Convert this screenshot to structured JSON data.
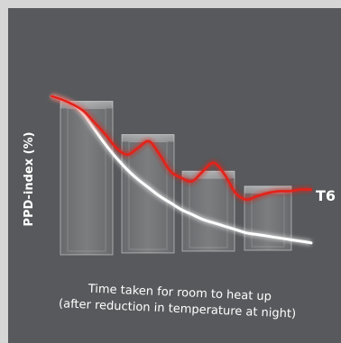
{
  "chart_data": {
    "type": "bar",
    "ylabel": "PPD-index (%)",
    "xlabel_lines": [
      "Time taken for room to heat up",
      "(after reduction in temperature at night)"
    ],
    "bars": [
      {
        "value": 90
      },
      {
        "value": 70
      },
      {
        "value": 48
      },
      {
        "value": 39
      }
    ],
    "series": [
      {
        "color": "#e2231a",
        "values": [
          93,
          91,
          88,
          84,
          77,
          70,
          62,
          58,
          62,
          66,
          58,
          48,
          44,
          42,
          48,
          53,
          46,
          35,
          31,
          33,
          35,
          36,
          36,
          37,
          37
        ]
      },
      {
        "color": "#ffffff",
        "values": [
          93,
          91,
          88,
          82,
          73,
          64,
          56,
          49,
          43,
          38,
          33,
          29,
          25,
          22,
          19,
          17,
          15,
          13,
          11,
          10,
          9,
          8,
          7,
          6,
          5
        ]
      }
    ],
    "ylim": [
      0,
      100
    ],
    "logo_text": "T6",
    "colors": {
      "background": "#57595c",
      "frame": "#d6d6d6",
      "bar": "#ffffff"
    }
  }
}
